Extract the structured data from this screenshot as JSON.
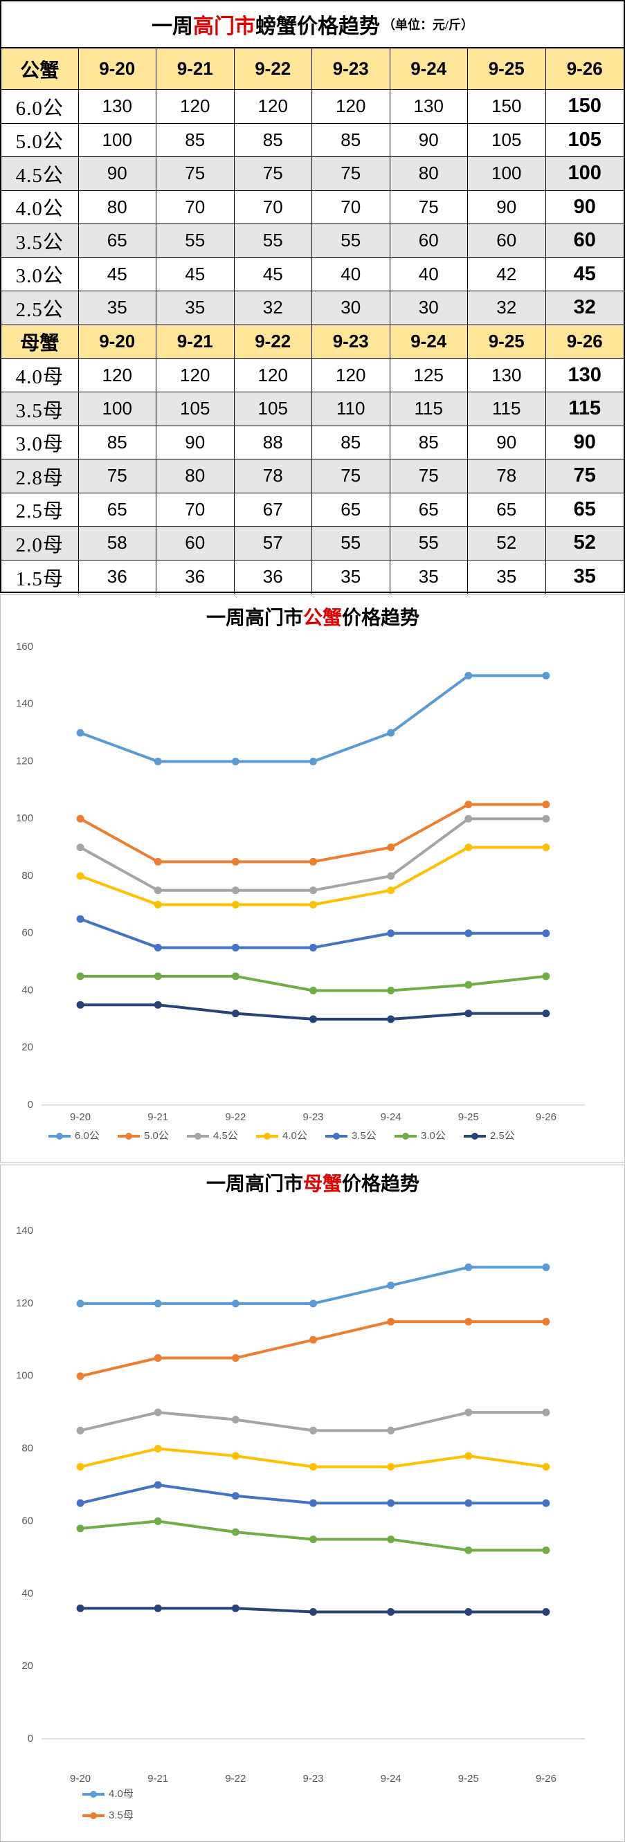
{
  "table": {
    "title_parts": [
      "一周",
      "高门市",
      "螃蟹价格趋势"
    ],
    "unit": "（单位：元/斤）",
    "sections": [
      {
        "header": [
          "公蟹",
          "9-20",
          "9-21",
          "9-22",
          "9-23",
          "9-24",
          "9-25",
          "9-26"
        ],
        "rows": [
          [
            "6.0公",
            130,
            120,
            120,
            120,
            130,
            150,
            150
          ],
          [
            "5.0公",
            100,
            85,
            85,
            85,
            90,
            105,
            105
          ],
          [
            "4.5公",
            90,
            75,
            75,
            75,
            80,
            100,
            100
          ],
          [
            "4.0公",
            80,
            70,
            70,
            70,
            75,
            90,
            90
          ],
          [
            "3.5公",
            65,
            55,
            55,
            55,
            60,
            60,
            60
          ],
          [
            "3.0公",
            45,
            45,
            45,
            40,
            40,
            42,
            45
          ],
          [
            "2.5公",
            35,
            35,
            32,
            30,
            30,
            32,
            32
          ]
        ]
      },
      {
        "header": [
          "母蟹",
          "9-20",
          "9-21",
          "9-22",
          "9-23",
          "9-24",
          "9-25",
          "9-26"
        ],
        "rows": [
          [
            "4.0母",
            120,
            120,
            120,
            120,
            125,
            130,
            130
          ],
          [
            "3.5母",
            100,
            105,
            105,
            110,
            115,
            115,
            115
          ],
          [
            "3.0母",
            85,
            90,
            88,
            85,
            85,
            90,
            90
          ],
          [
            "2.8母",
            75,
            80,
            78,
            75,
            75,
            78,
            75
          ],
          [
            "2.5母",
            65,
            70,
            67,
            65,
            65,
            65,
            65
          ],
          [
            "2.0母",
            58,
            60,
            57,
            55,
            55,
            52,
            52
          ],
          [
            "1.5母",
            36,
            36,
            36,
            35,
            35,
            35,
            35
          ]
        ]
      }
    ]
  },
  "chart_data": [
    {
      "type": "line",
      "title_parts": [
        "一周高门市",
        "公蟹",
        "价格趋势"
      ],
      "categories": [
        "9-20",
        "9-21",
        "9-22",
        "9-23",
        "9-24",
        "9-25",
        "9-26"
      ],
      "ylim": [
        0,
        160
      ],
      "yticks": [
        0,
        20,
        40,
        60,
        80,
        100,
        120,
        140,
        160
      ],
      "grid": false,
      "legend": "bottom",
      "series": [
        {
          "name": "6.0公",
          "color": "#5b9bd5",
          "values": [
            130,
            120,
            120,
            120,
            130,
            150,
            150
          ]
        },
        {
          "name": "5.0公",
          "color": "#ed7d31",
          "values": [
            100,
            85,
            85,
            85,
            90,
            105,
            105
          ]
        },
        {
          "name": "4.5公",
          "color": "#a5a5a5",
          "values": [
            90,
            75,
            75,
            75,
            80,
            100,
            100
          ]
        },
        {
          "name": "4.0公",
          "color": "#ffc000",
          "values": [
            80,
            70,
            70,
            70,
            75,
            90,
            90
          ]
        },
        {
          "name": "3.5公",
          "color": "#4472c4",
          "values": [
            65,
            55,
            55,
            55,
            60,
            60,
            60
          ]
        },
        {
          "name": "3.0公",
          "color": "#70ad47",
          "values": [
            45,
            45,
            45,
            40,
            40,
            42,
            45
          ]
        },
        {
          "name": "2.5公",
          "color": "#264478",
          "values": [
            35,
            35,
            32,
            30,
            30,
            32,
            32
          ]
        }
      ]
    },
    {
      "type": "line",
      "title_parts": [
        "一周高门市",
        "母蟹",
        "价格趋势"
      ],
      "categories": [
        "9-20",
        "9-21",
        "9-22",
        "9-23",
        "9-24",
        "9-25",
        "9-26"
      ],
      "ylim": [
        0,
        140
      ],
      "yticks": [
        0,
        20,
        40,
        60,
        80,
        100,
        120,
        140
      ],
      "grid": false,
      "legend": "bottom-left",
      "series": [
        {
          "name": "4.0母",
          "color": "#5b9bd5",
          "values": [
            120,
            120,
            120,
            120,
            125,
            130,
            130
          ]
        },
        {
          "name": "3.5母",
          "color": "#ed7d31",
          "values": [
            100,
            105,
            105,
            110,
            115,
            115,
            115
          ]
        },
        {
          "color": "#a5a5a5",
          "values": [
            85,
            90,
            88,
            85,
            85,
            90,
            90
          ]
        },
        {
          "color": "#ffc000",
          "values": [
            75,
            80,
            78,
            75,
            75,
            78,
            75
          ]
        },
        {
          "color": "#4472c4",
          "values": [
            65,
            70,
            67,
            65,
            65,
            65,
            65
          ]
        },
        {
          "color": "#70ad47",
          "values": [
            58,
            60,
            57,
            55,
            55,
            52,
            52
          ]
        },
        {
          "color": "#264478",
          "values": [
            36,
            36,
            36,
            35,
            35,
            35,
            35
          ]
        }
      ]
    }
  ]
}
